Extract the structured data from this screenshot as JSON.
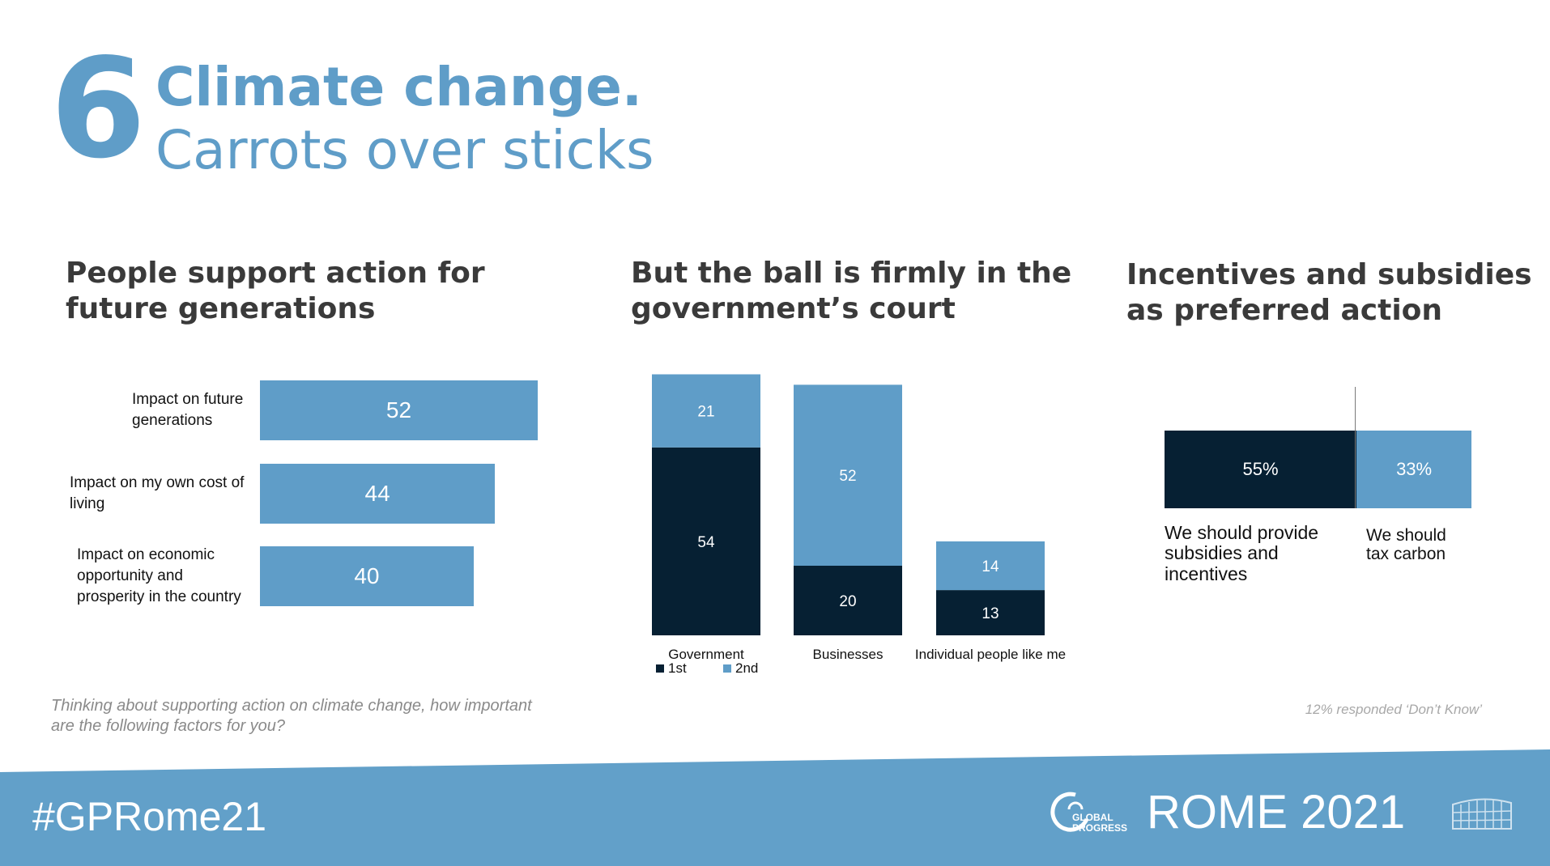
{
  "header": {
    "number": "6",
    "title_bold": "Climate change.",
    "title_light": "Carrots over sticks"
  },
  "panels": [
    {
      "subtitle": "People support action for\nfuture generations"
    },
    {
      "subtitle": "But the ball is firmly in the\ngovernment’s court"
    },
    {
      "subtitle": "Incentives and subsidies\nas preferred action"
    }
  ],
  "chart_data": [
    {
      "type": "bar",
      "orientation": "horizontal",
      "categories": [
        "Impact on future generations",
        "Impact on my own cost of living",
        "Impact on economic opportunity and prosperity in the country"
      ],
      "values": [
        52,
        44,
        40
      ],
      "category_lines": [
        [
          "Impact on future",
          "generations"
        ],
        [
          "Impact on my own cost of",
          "living"
        ],
        [
          "Impact on economic",
          "opportunity and",
          "prosperity in the country"
        ]
      ],
      "color": "#5f9dc8",
      "note": "Thinking about supporting action on climate change, how important are the following factors for you?"
    },
    {
      "type": "bar",
      "stacked": true,
      "categories": [
        "Government",
        "Businesses",
        "Individual people like me"
      ],
      "series": [
        {
          "name": "1st",
          "color": "#062033",
          "values": [
            54,
            20,
            13
          ]
        },
        {
          "name": "2nd",
          "color": "#5f9dc8",
          "values": [
            21,
            52,
            14
          ]
        }
      ],
      "legend_position": "bottom-left"
    },
    {
      "type": "bar",
      "orientation": "horizontal",
      "stacked": true,
      "categories": [
        "We should provide subsidies and incentives",
        "We should tax carbon"
      ],
      "values": [
        55,
        33
      ],
      "labels": [
        "55%",
        "33%"
      ],
      "category_lines": [
        [
          "We should provide",
          "subsidies and",
          "incentives"
        ],
        [
          "We should",
          "tax carbon"
        ]
      ],
      "colors": [
        "#062033",
        "#5f9dc8"
      ],
      "note": "12% responded ‘Don’t Know’"
    }
  ],
  "footer": {
    "hashtag": "#GPRome21",
    "logo_text": "GLOBAL\nPROGRESS",
    "event": "ROME 2021",
    "bg_color": "#62a0c9"
  }
}
